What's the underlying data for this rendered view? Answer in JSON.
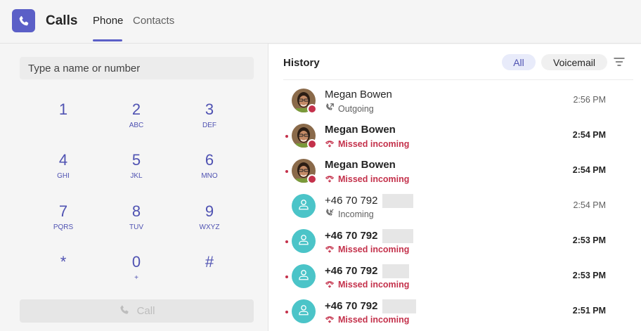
{
  "header": {
    "app_title": "Calls",
    "tabs": [
      {
        "label": "Phone",
        "active": true
      },
      {
        "label": "Contacts",
        "active": false
      }
    ],
    "accent_color": "#5b5fc7"
  },
  "dial": {
    "placeholder": "Type a name or number",
    "keys": [
      {
        "digit": "1",
        "letters": ""
      },
      {
        "digit": "2",
        "letters": "ABC"
      },
      {
        "digit": "3",
        "letters": "DEF"
      },
      {
        "digit": "4",
        "letters": "GHI"
      },
      {
        "digit": "5",
        "letters": "JKL"
      },
      {
        "digit": "6",
        "letters": "MNO"
      },
      {
        "digit": "7",
        "letters": "PQRS"
      },
      {
        "digit": "8",
        "letters": "TUV"
      },
      {
        "digit": "9",
        "letters": "WXYZ"
      },
      {
        "digit": "*",
        "letters": ""
      },
      {
        "digit": "0",
        "letters": "+"
      },
      {
        "digit": "#",
        "letters": ""
      }
    ],
    "call_label": "Call"
  },
  "history": {
    "title": "History",
    "filters": {
      "all": "All",
      "voicemail": "Voicemail"
    },
    "items": [
      {
        "name": "Megan Bowen",
        "type": "Outgoing",
        "time": "2:56 PM",
        "missed": false,
        "avatar": "photo"
      },
      {
        "name": "Megan Bowen",
        "type": "Missed incoming",
        "time": "2:54 PM",
        "missed": true,
        "avatar": "photo"
      },
      {
        "name": "Megan Bowen",
        "type": "Missed incoming",
        "time": "2:54 PM",
        "missed": true,
        "avatar": "photo"
      },
      {
        "name": "+46 70 792",
        "type": "Incoming",
        "time": "2:54 PM",
        "missed": false,
        "avatar": "generic"
      },
      {
        "name": "+46 70 792",
        "type": "Missed incoming",
        "time": "2:53 PM",
        "missed": true,
        "avatar": "generic"
      },
      {
        "name": "+46 70 792",
        "type": "Missed incoming",
        "time": "2:53 PM",
        "missed": true,
        "avatar": "generic"
      },
      {
        "name": "+46 70 792",
        "type": "Missed incoming",
        "time": "2:51 PM",
        "missed": true,
        "avatar": "generic"
      }
    ]
  }
}
